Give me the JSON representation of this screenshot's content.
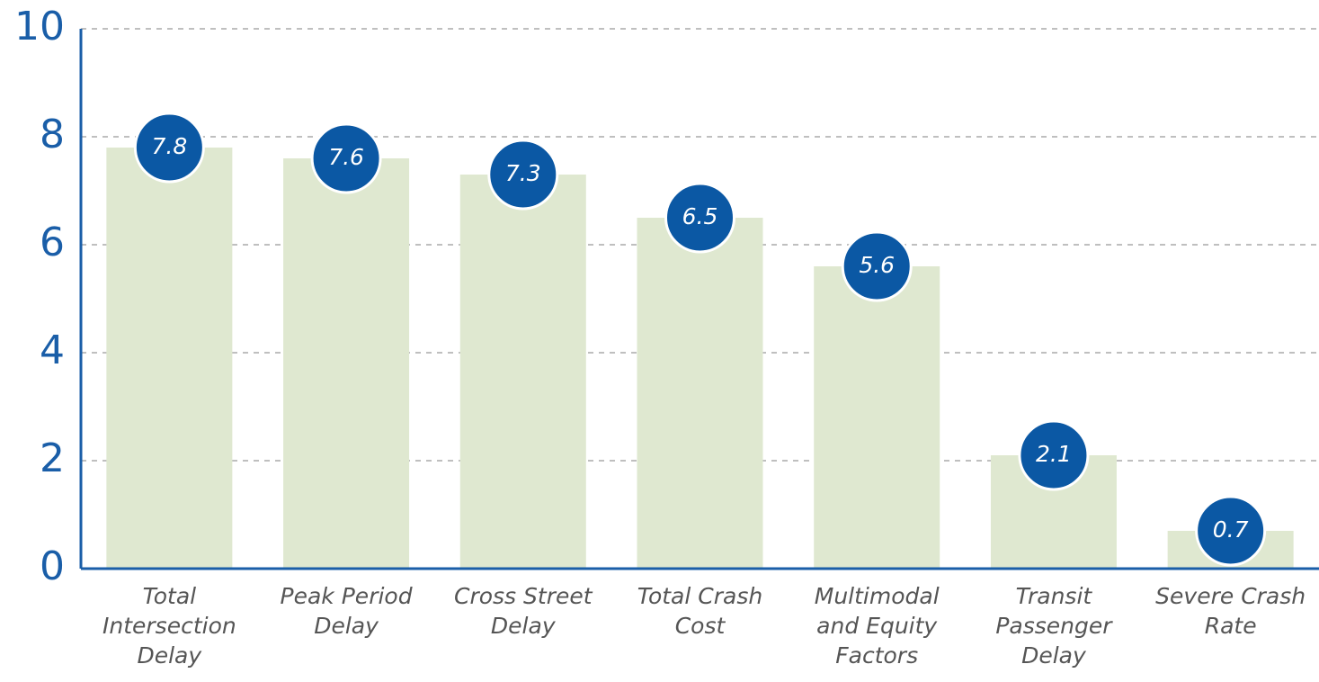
{
  "chart_data": {
    "type": "bar",
    "categories": [
      "Total Intersection Delay",
      "Peak Period Delay",
      "Cross Street Delay",
      "Total Crash Cost",
      "Multimodal and Equity Factors",
      "Transit Passenger Delay",
      "Severe Crash Rate"
    ],
    "values": [
      7.8,
      7.6,
      7.3,
      6.5,
      5.6,
      2.1,
      0.7
    ],
    "color": "#dfe8d0",
    "label_color": "#0b58a4",
    "ylim": [
      0,
      10
    ],
    "yticks": [
      0,
      2,
      4,
      6,
      8,
      10
    ],
    "grid": true
  }
}
